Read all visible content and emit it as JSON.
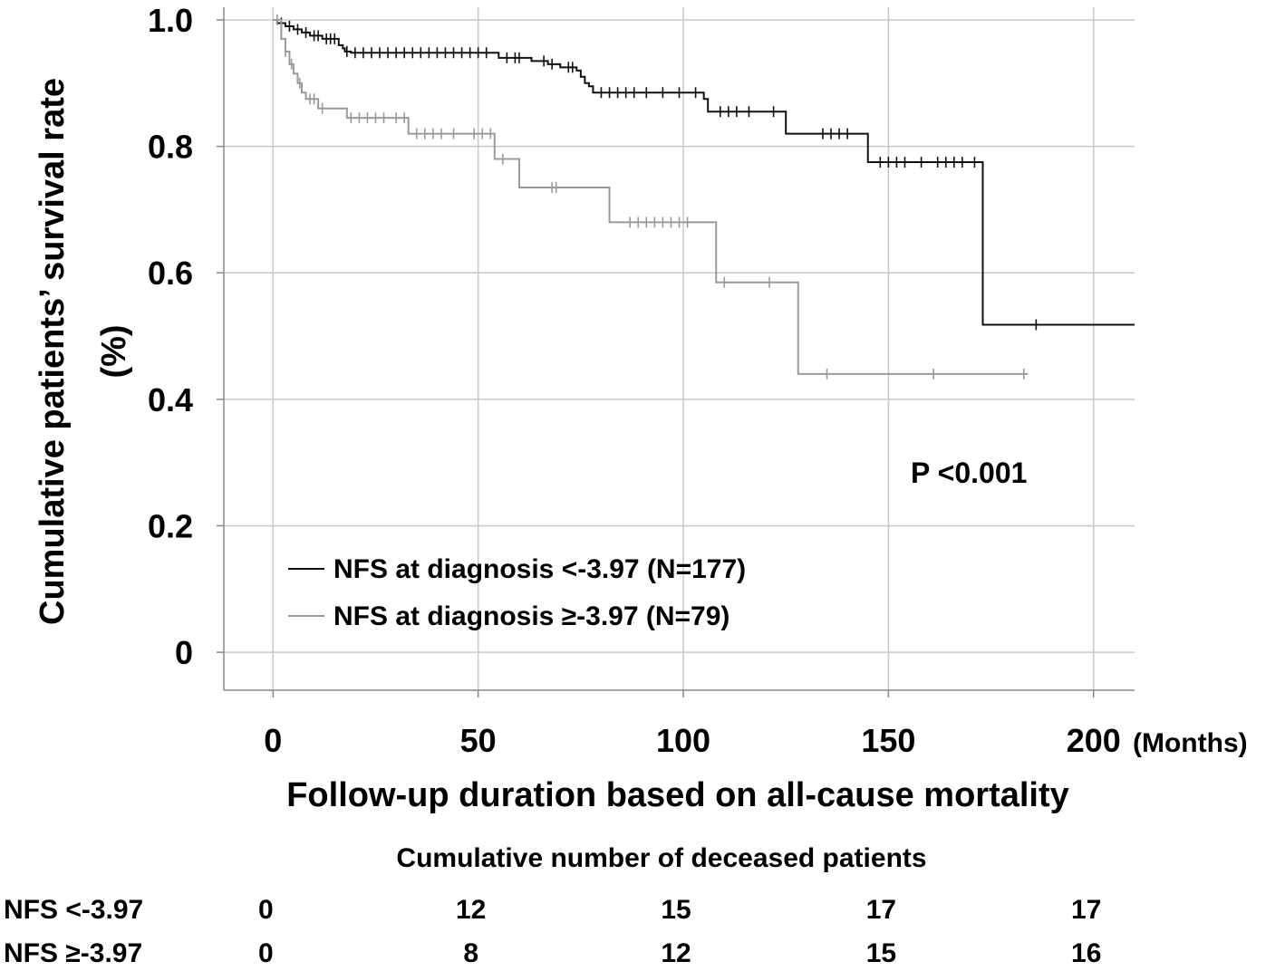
{
  "chart_data": {
    "type": "line",
    "subtype": "kaplan-meier",
    "ylabel_line1": "Cumulative patients’ survival rate",
    "ylabel_line2": "(%)",
    "xlabel": "Follow-up duration based on all-cause mortality",
    "x_unit": "(Months)",
    "xlim": [
      -12,
      210
    ],
    "ylim": [
      -0.06,
      1.02
    ],
    "x_ticks": [
      0,
      50,
      100,
      150,
      200
    ],
    "x_tick_labels": [
      "0",
      "50",
      "100",
      "150",
      "200"
    ],
    "y_ticks": [
      0,
      0.2,
      0.4,
      0.6,
      0.8,
      1.0
    ],
    "y_tick_labels": [
      "0",
      "0.2",
      "0.4",
      "0.6",
      "0.8",
      "1.0"
    ],
    "grid": true,
    "annotation": "P <0.001",
    "legend_position": "bottom-left",
    "series": [
      {
        "name": "NFS at diagnosis <-3.97 (N=177)",
        "color": "#111111",
        "steps": [
          [
            0,
            1.0
          ],
          [
            1,
            0.995
          ],
          [
            3,
            0.99
          ],
          [
            5,
            0.985
          ],
          [
            7,
            0.98
          ],
          [
            9,
            0.975
          ],
          [
            12,
            0.97
          ],
          [
            16,
            0.96
          ],
          [
            17,
            0.955
          ],
          [
            17.5,
            0.95
          ],
          [
            19,
            0.948
          ],
          [
            55,
            0.94
          ],
          [
            63,
            0.935
          ],
          [
            67,
            0.93
          ],
          [
            70,
            0.925
          ],
          [
            74,
            0.92
          ],
          [
            75,
            0.91
          ],
          [
            76,
            0.9
          ],
          [
            77,
            0.895
          ],
          [
            78,
            0.885
          ],
          [
            105,
            0.875
          ],
          [
            106,
            0.855
          ],
          [
            125,
            0.82
          ],
          [
            145,
            0.775
          ],
          [
            173,
            0.518
          ],
          [
            210,
            0.518
          ]
        ],
        "censor_times": [
          2,
          4,
          6,
          8,
          10,
          11,
          13,
          14,
          15,
          18,
          20,
          22,
          24,
          26,
          28,
          30,
          32,
          34,
          36,
          38,
          40,
          42,
          44,
          46,
          48,
          50,
          52,
          57,
          59,
          60,
          66,
          68,
          72,
          73,
          80,
          82,
          84,
          86,
          88,
          91,
          95,
          99,
          103,
          109,
          111,
          113,
          116,
          122,
          134,
          136,
          138,
          140,
          148,
          150,
          152,
          154,
          158,
          162,
          164,
          166,
          168,
          171,
          186
        ]
      },
      {
        "name": "NFS at diagnosis ≥-3.97 (N=79)",
        "color": "#9a9a9a",
        "steps": [
          [
            0,
            1.0
          ],
          [
            2,
            0.97
          ],
          [
            3,
            0.95
          ],
          [
            4,
            0.93
          ],
          [
            5,
            0.915
          ],
          [
            6,
            0.9
          ],
          [
            7,
            0.885
          ],
          [
            8,
            0.875
          ],
          [
            11,
            0.86
          ],
          [
            18,
            0.845
          ],
          [
            33,
            0.82
          ],
          [
            54,
            0.78
          ],
          [
            60,
            0.735
          ],
          [
            82,
            0.68
          ],
          [
            108,
            0.585
          ],
          [
            128,
            0.44
          ],
          [
            184,
            0.44
          ]
        ],
        "censor_times": [
          1,
          3,
          4.5,
          6.5,
          9,
          10,
          12,
          19,
          21,
          23,
          25,
          27,
          30,
          32,
          35,
          37,
          39,
          41,
          44,
          49,
          51,
          53,
          56,
          68,
          69,
          87,
          89,
          91,
          93,
          95,
          97,
          99,
          101,
          110,
          121,
          135,
          161,
          183
        ]
      }
    ],
    "risk_table": {
      "title": "Cumulative number of deceased patients",
      "rows": [
        {
          "label": "NFS <-3.97",
          "values": [
            "0",
            "12",
            "15",
            "17",
            "17"
          ]
        },
        {
          "label": "NFS ≥-3.97",
          "values": [
            "0",
            "8",
            "12",
            "15",
            "16"
          ]
        }
      ]
    }
  }
}
